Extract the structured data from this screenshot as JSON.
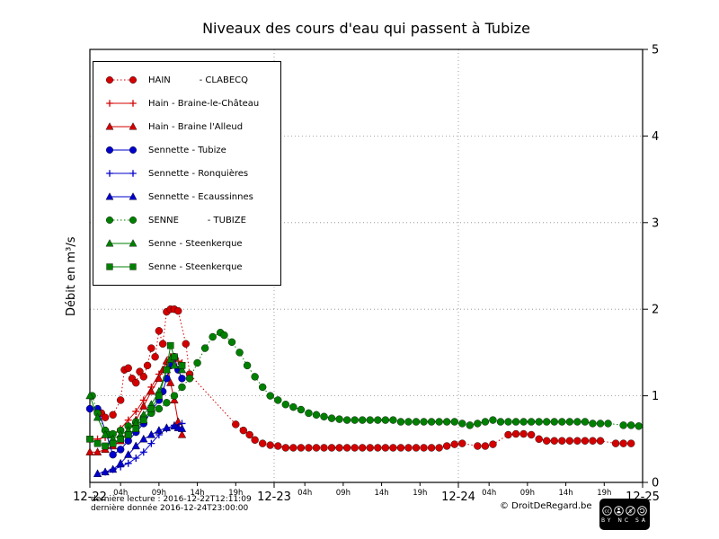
{
  "title": "Niveaux des cours d'eau qui passent à Tubize",
  "y_axis": {
    "label": "Débit en m³/s",
    "ticks": [
      0,
      1,
      2,
      3,
      4,
      5
    ]
  },
  "x_axis": {
    "major": [
      {
        "t": 0,
        "label": "12-22"
      },
      {
        "t": 24,
        "label": "12-23"
      },
      {
        "t": 48,
        "label": "12-24"
      },
      {
        "t": 72,
        "label": "12-25"
      }
    ],
    "minor": [
      {
        "t": 4,
        "label": "04h"
      },
      {
        "t": 9,
        "label": "09h"
      },
      {
        "t": 14,
        "label": "14h"
      },
      {
        "t": 19,
        "label": "19h"
      },
      {
        "t": 28,
        "label": "04h"
      },
      {
        "t": 33,
        "label": "09h"
      },
      {
        "t": 38,
        "label": "14h"
      },
      {
        "t": 43,
        "label": "19h"
      },
      {
        "t": 52,
        "label": "04h"
      },
      {
        "t": 57,
        "label": "09h"
      },
      {
        "t": 62,
        "label": "14h"
      },
      {
        "t": 67,
        "label": "19h"
      }
    ]
  },
  "footer": {
    "line1": "dernière lecture : 2016-12-22T12:11:09",
    "line2": "dernière donnée  2016-12-24T23:00:00",
    "copyright": "© DroitDeRegard.be",
    "license_name": "cc",
    "license_letters": "BY NC SA"
  },
  "chart_data": {
    "type": "line",
    "title": "Niveaux des cours d'eau qui passent à Tubize",
    "xlabel": "",
    "ylabel": "Débit en m³/s",
    "x_unit": "hours since 2016-12-22 00:00",
    "x_range": [
      0,
      72
    ],
    "y_range": [
      0,
      5
    ],
    "grid": {
      "x": [
        24,
        48
      ],
      "y": [
        1,
        2,
        3,
        4
      ]
    },
    "series": [
      {
        "id": "hain-clabecq",
        "label": "HAIN          - CLABECQ",
        "color": "#d40000",
        "marker": "circle",
        "line": "dotted",
        "points": [
          [
            1,
            0.82
          ],
          [
            1.5,
            0.8
          ],
          [
            2,
            0.75
          ],
          [
            3,
            0.78
          ],
          [
            4,
            0.95
          ],
          [
            4.5,
            1.3
          ],
          [
            5,
            1.32
          ],
          [
            5.5,
            1.2
          ],
          [
            6,
            1.15
          ],
          [
            6.5,
            1.28
          ],
          [
            7,
            1.22
          ],
          [
            7.5,
            1.35
          ],
          [
            8,
            1.55
          ],
          [
            8.5,
            1.45
          ],
          [
            9,
            1.75
          ],
          [
            9.5,
            1.6
          ],
          [
            10,
            1.97
          ],
          [
            10.5,
            2.0
          ],
          [
            11,
            2.0
          ],
          [
            11.5,
            1.98
          ],
          [
            12.5,
            1.6
          ],
          [
            13,
            1.25
          ],
          [
            19,
            0.67
          ],
          [
            20,
            0.6
          ],
          [
            20.8,
            0.55
          ],
          [
            21.5,
            0.49
          ],
          [
            22.5,
            0.45
          ],
          [
            23.5,
            0.43
          ],
          [
            24.5,
            0.42
          ],
          [
            25.5,
            0.4
          ],
          [
            26.5,
            0.4
          ],
          [
            27.5,
            0.4
          ],
          [
            28.5,
            0.4
          ],
          [
            29.5,
            0.4
          ],
          [
            30.5,
            0.4
          ],
          [
            31.5,
            0.4
          ],
          [
            32.5,
            0.4
          ],
          [
            33.5,
            0.4
          ],
          [
            34.5,
            0.4
          ],
          [
            35.5,
            0.4
          ],
          [
            36.5,
            0.4
          ],
          [
            37.5,
            0.4
          ],
          [
            38.5,
            0.4
          ],
          [
            39.5,
            0.4
          ],
          [
            40.5,
            0.4
          ],
          [
            41.5,
            0.4
          ],
          [
            42.5,
            0.4
          ],
          [
            43.5,
            0.4
          ],
          [
            44.5,
            0.4
          ],
          [
            45.5,
            0.4
          ],
          [
            46.5,
            0.42
          ],
          [
            47.5,
            0.44
          ],
          [
            48.5,
            0.45
          ],
          [
            50.5,
            0.42
          ],
          [
            51.5,
            0.42
          ],
          [
            52.5,
            0.44
          ],
          [
            54.5,
            0.55
          ],
          [
            55.5,
            0.56
          ],
          [
            56.5,
            0.56
          ],
          [
            57.5,
            0.55
          ],
          [
            58.5,
            0.5
          ],
          [
            59.5,
            0.48
          ],
          [
            60.5,
            0.48
          ],
          [
            61.5,
            0.48
          ],
          [
            62.5,
            0.48
          ],
          [
            63.5,
            0.48
          ],
          [
            64.5,
            0.48
          ],
          [
            65.5,
            0.48
          ],
          [
            66.5,
            0.48
          ],
          [
            68.5,
            0.45
          ],
          [
            69.5,
            0.45
          ],
          [
            70.5,
            0.45
          ]
        ]
      },
      {
        "id": "hain-braine-le-chateau",
        "label": "Hain - Braine-le-Château",
        "color": "#d40000",
        "marker": "plus",
        "line": "solid",
        "points": [
          [
            0,
            0.5
          ],
          [
            1,
            0.5
          ],
          [
            2,
            0.52
          ],
          [
            3,
            0.55
          ],
          [
            4,
            0.62
          ],
          [
            5,
            0.72
          ],
          [
            6,
            0.82
          ],
          [
            7,
            0.95
          ],
          [
            8,
            1.1
          ],
          [
            9,
            1.25
          ],
          [
            10,
            1.38
          ],
          [
            10.5,
            1.45
          ],
          [
            11,
            1.42
          ],
          [
            11.5,
            1.4
          ],
          [
            12,
            1.38
          ]
        ]
      },
      {
        "id": "hain-braine-l-alleud",
        "label": "Hain - Braine l'Alleud",
        "color": "#d40000",
        "marker": "triangle",
        "line": "solid",
        "points": [
          [
            0,
            0.35
          ],
          [
            1,
            0.35
          ],
          [
            2,
            0.38
          ],
          [
            3,
            0.42
          ],
          [
            4,
            0.48
          ],
          [
            5,
            0.58
          ],
          [
            6,
            0.72
          ],
          [
            7,
            0.88
          ],
          [
            8,
            1.05
          ],
          [
            9,
            1.2
          ],
          [
            9.5,
            1.3
          ],
          [
            10,
            1.4
          ],
          [
            10.5,
            1.15
          ],
          [
            11,
            0.95
          ],
          [
            11.5,
            0.7
          ],
          [
            12,
            0.55
          ]
        ]
      },
      {
        "id": "sennette-tubize",
        "label": "Sennette - Tubize",
        "color": "#0000cc",
        "marker": "circle",
        "line": "solid",
        "points": [
          [
            0,
            0.85
          ],
          [
            1,
            0.85
          ],
          [
            2,
            0.6
          ],
          [
            3,
            0.32
          ],
          [
            4,
            0.38
          ],
          [
            5,
            0.48
          ],
          [
            6,
            0.58
          ],
          [
            7,
            0.68
          ],
          [
            8,
            0.82
          ],
          [
            9,
            0.95
          ],
          [
            9.5,
            1.05
          ],
          [
            10,
            1.2
          ],
          [
            10.5,
            1.35
          ],
          [
            11,
            1.45
          ],
          [
            11.5,
            1.3
          ],
          [
            12,
            1.2
          ]
        ]
      },
      {
        "id": "sennette-ronquieres",
        "label": "Sennette - Ronquières",
        "color": "#0000cc",
        "marker": "plus",
        "line": "solid",
        "points": [
          [
            2,
            0.12
          ],
          [
            3,
            0.15
          ],
          [
            4,
            0.18
          ],
          [
            5,
            0.22
          ],
          [
            6,
            0.28
          ],
          [
            7,
            0.35
          ],
          [
            8,
            0.45
          ],
          [
            9,
            0.55
          ],
          [
            10,
            0.62
          ],
          [
            11,
            0.66
          ],
          [
            12,
            0.68
          ]
        ]
      },
      {
        "id": "sennette-ecaussinnes",
        "label": "Sennette - Ecaussinnes",
        "color": "#0000cc",
        "marker": "triangle",
        "line": "solid",
        "points": [
          [
            1,
            0.1
          ],
          [
            2,
            0.12
          ],
          [
            3,
            0.15
          ],
          [
            4,
            0.22
          ],
          [
            5,
            0.32
          ],
          [
            6,
            0.42
          ],
          [
            7,
            0.5
          ],
          [
            8,
            0.55
          ],
          [
            9,
            0.6
          ],
          [
            10,
            0.63
          ],
          [
            11,
            0.65
          ],
          [
            11.5,
            0.63
          ],
          [
            12,
            0.62
          ]
        ]
      },
      {
        "id": "senne-tubize",
        "label": "SENNE          - TUBIZE",
        "color": "#008000",
        "marker": "circle",
        "line": "dotted",
        "points": [
          [
            0.3,
            1.0
          ],
          [
            1,
            0.8
          ],
          [
            2,
            0.6
          ],
          [
            2.5,
            0.55
          ],
          [
            3,
            0.56
          ],
          [
            4,
            0.6
          ],
          [
            5,
            0.65
          ],
          [
            6,
            0.7
          ],
          [
            7,
            0.75
          ],
          [
            8,
            0.8
          ],
          [
            9,
            0.85
          ],
          [
            10,
            0.92
          ],
          [
            11,
            1.0
          ],
          [
            12,
            1.1
          ],
          [
            13,
            1.2
          ],
          [
            14,
            1.38
          ],
          [
            15,
            1.55
          ],
          [
            16,
            1.68
          ],
          [
            17,
            1.73
          ],
          [
            17.5,
            1.7
          ],
          [
            18.5,
            1.62
          ],
          [
            19.5,
            1.5
          ],
          [
            20.5,
            1.35
          ],
          [
            21.5,
            1.22
          ],
          [
            22.5,
            1.1
          ],
          [
            23.5,
            1.0
          ],
          [
            24.5,
            0.95
          ],
          [
            25.5,
            0.9
          ],
          [
            26.5,
            0.87
          ],
          [
            27.5,
            0.84
          ],
          [
            28.5,
            0.8
          ],
          [
            29.5,
            0.78
          ],
          [
            30.5,
            0.76
          ],
          [
            31.5,
            0.74
          ],
          [
            32.5,
            0.73
          ],
          [
            33.5,
            0.72
          ],
          [
            34.5,
            0.72
          ],
          [
            35.5,
            0.72
          ],
          [
            36.5,
            0.72
          ],
          [
            37.5,
            0.72
          ],
          [
            38.5,
            0.72
          ],
          [
            39.5,
            0.72
          ],
          [
            40.5,
            0.7
          ],
          [
            41.5,
            0.7
          ],
          [
            42.5,
            0.7
          ],
          [
            43.5,
            0.7
          ],
          [
            44.5,
            0.7
          ],
          [
            45.5,
            0.7
          ],
          [
            46.5,
            0.7
          ],
          [
            47.5,
            0.7
          ],
          [
            48.5,
            0.68
          ],
          [
            49.5,
            0.66
          ],
          [
            50.5,
            0.68
          ],
          [
            51.5,
            0.7
          ],
          [
            52.5,
            0.72
          ],
          [
            53.5,
            0.7
          ],
          [
            54.5,
            0.7
          ],
          [
            55.5,
            0.7
          ],
          [
            56.5,
            0.7
          ],
          [
            57.5,
            0.7
          ],
          [
            58.5,
            0.7
          ],
          [
            59.5,
            0.7
          ],
          [
            60.5,
            0.7
          ],
          [
            61.5,
            0.7
          ],
          [
            62.5,
            0.7
          ],
          [
            63.5,
            0.7
          ],
          [
            64.5,
            0.7
          ],
          [
            65.5,
            0.68
          ],
          [
            66.5,
            0.68
          ],
          [
            67.5,
            0.68
          ],
          [
            69.5,
            0.66
          ],
          [
            70.5,
            0.66
          ],
          [
            71.5,
            0.65
          ]
        ]
      },
      {
        "id": "senne-steenkerque-1",
        "label": "Senne - Steenkerque",
        "color": "#008000",
        "marker": "triangle",
        "line": "solid",
        "points": [
          [
            0,
            1.0
          ],
          [
            1,
            0.75
          ],
          [
            2,
            0.55
          ],
          [
            3,
            0.5
          ],
          [
            4,
            0.55
          ],
          [
            5,
            0.6
          ],
          [
            6,
            0.68
          ],
          [
            7,
            0.78
          ],
          [
            8,
            0.9
          ],
          [
            9,
            1.05
          ],
          [
            10,
            1.3
          ],
          [
            10.5,
            1.42
          ],
          [
            11,
            1.35
          ],
          [
            12,
            1.3
          ]
        ]
      },
      {
        "id": "senne-steenkerque-2",
        "label": "Senne - Steenkerque",
        "color": "#008000",
        "marker": "square",
        "line": "solid",
        "points": [
          [
            0,
            0.5
          ],
          [
            1,
            0.45
          ],
          [
            2,
            0.42
          ],
          [
            3,
            0.45
          ],
          [
            4,
            0.5
          ],
          [
            5,
            0.55
          ],
          [
            6,
            0.62
          ],
          [
            7,
            0.72
          ],
          [
            8,
            0.85
          ],
          [
            9,
            1.0
          ],
          [
            10,
            1.3
          ],
          [
            10.5,
            1.58
          ],
          [
            11,
            1.45
          ],
          [
            12,
            1.35
          ]
        ]
      }
    ]
  }
}
